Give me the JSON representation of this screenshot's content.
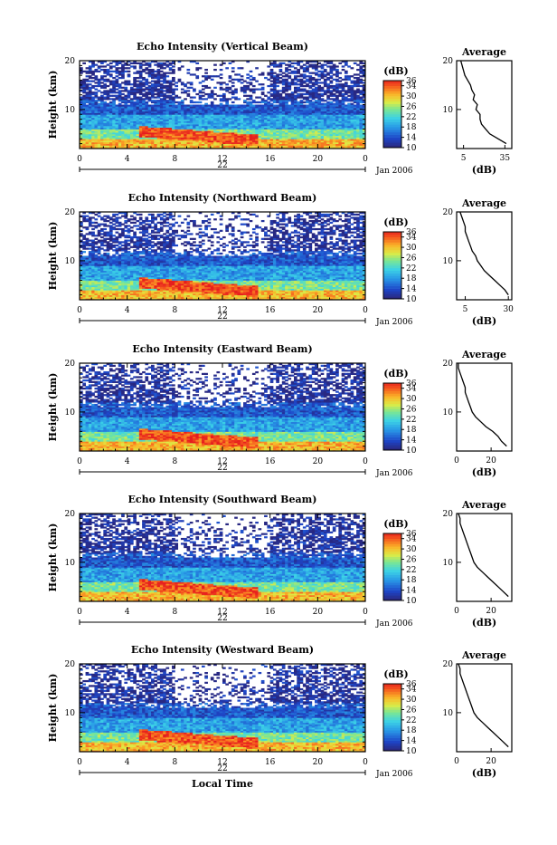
{
  "chart_data": [
    {
      "type": "heatmap",
      "title": "Echo Intensity (Vertical Beam)",
      "ylabel": "Height (km)",
      "yticks": [
        "20",
        "10"
      ],
      "ylim": [
        2,
        20
      ],
      "xticks": [
        "0",
        "4",
        "8",
        "12",
        "16",
        "20",
        "0"
      ],
      "xlim": [
        0,
        24
      ],
      "day_label": "22",
      "date_label": "Jan 2006",
      "colorbar": {
        "unit": "(dB)",
        "ticks": [
          "36",
          "34",
          "30",
          "26",
          "22",
          "18",
          "14",
          "10"
        ],
        "range": [
          10,
          36
        ]
      },
      "average": {
        "title": "Average",
        "xlabel": "(dB)",
        "xticks": [
          "5",
          "35"
        ],
        "yticks": [
          "20",
          "10"
        ],
        "xlim": [
          0,
          40
        ],
        "profile": [
          [
            3,
            36
          ],
          [
            4,
            30
          ],
          [
            5,
            24
          ],
          [
            6,
            21
          ],
          [
            7,
            18
          ],
          [
            8,
            17
          ],
          [
            9,
            17
          ],
          [
            10,
            14
          ],
          [
            11,
            15
          ],
          [
            12,
            12
          ],
          [
            13,
            13
          ],
          [
            14,
            11
          ],
          [
            15,
            10
          ],
          [
            16,
            8
          ],
          [
            17,
            6
          ],
          [
            18,
            5
          ],
          [
            19,
            4
          ],
          [
            20,
            3
          ]
        ]
      }
    },
    {
      "type": "heatmap",
      "title": "Echo Intensity (Northward Beam)",
      "ylabel": "Height (km)",
      "yticks": [
        "20",
        "10"
      ],
      "ylim": [
        2,
        20
      ],
      "xticks": [
        "0",
        "4",
        "8",
        "12",
        "16",
        "20",
        "0"
      ],
      "xlim": [
        0,
        24
      ],
      "day_label": "22",
      "date_label": "Jan 2006",
      "colorbar": {
        "unit": "(dB)",
        "ticks": [
          "36",
          "34",
          "30",
          "26",
          "22",
          "18",
          "14",
          "10"
        ],
        "range": [
          10,
          36
        ]
      },
      "average": {
        "title": "Average",
        "xlabel": "(dB)",
        "xticks": [
          "5",
          "30"
        ],
        "yticks": [
          "20",
          "10"
        ],
        "xlim": [
          0,
          32
        ],
        "profile": [
          [
            3,
            30
          ],
          [
            4,
            28
          ],
          [
            5,
            25
          ],
          [
            6,
            22
          ],
          [
            7,
            19
          ],
          [
            8,
            16
          ],
          [
            9,
            14
          ],
          [
            10,
            12
          ],
          [
            11,
            11
          ],
          [
            12,
            9
          ],
          [
            13,
            8
          ],
          [
            14,
            7
          ],
          [
            15,
            6
          ],
          [
            16,
            5
          ],
          [
            17,
            5
          ],
          [
            18,
            4
          ],
          [
            19,
            3
          ],
          [
            20,
            2
          ]
        ]
      }
    },
    {
      "type": "heatmap",
      "title": "Echo Intensity (Eastward Beam)",
      "ylabel": "Height (km)",
      "yticks": [
        "20",
        "10"
      ],
      "ylim": [
        2,
        20
      ],
      "xticks": [
        "0",
        "4",
        "8",
        "12",
        "16",
        "20",
        "0"
      ],
      "xlim": [
        0,
        24
      ],
      "day_label": "22",
      "date_label": "Jan 2006",
      "colorbar": {
        "unit": "(dB)",
        "ticks": [
          "36",
          "34",
          "30",
          "26",
          "22",
          "18",
          "14",
          "10"
        ],
        "range": [
          10,
          36
        ]
      },
      "average": {
        "title": "Average",
        "xlabel": "(dB)",
        "xticks": [
          "0",
          "20"
        ],
        "yticks": [
          "20",
          "10"
        ],
        "xlim": [
          0,
          32
        ],
        "profile": [
          [
            3,
            29
          ],
          [
            4,
            26
          ],
          [
            5,
            24
          ],
          [
            6,
            21
          ],
          [
            7,
            17
          ],
          [
            8,
            14
          ],
          [
            9,
            11
          ],
          [
            10,
            9
          ],
          [
            11,
            8
          ],
          [
            12,
            7
          ],
          [
            13,
            6
          ],
          [
            14,
            5
          ],
          [
            15,
            5
          ],
          [
            16,
            4
          ],
          [
            17,
            3
          ],
          [
            18,
            2
          ],
          [
            19,
            1
          ],
          [
            20,
            1
          ]
        ]
      }
    },
    {
      "type": "heatmap",
      "title": "Echo Intensity (Southward Beam)",
      "ylabel": "Height (km)",
      "yticks": [
        "20",
        "10"
      ],
      "ylim": [
        2,
        20
      ],
      "xticks": [
        "0",
        "4",
        "8",
        "12",
        "16",
        "20",
        "0"
      ],
      "xlim": [
        0,
        24
      ],
      "day_label": "22",
      "date_label": "Jan 2006",
      "colorbar": {
        "unit": "(dB)",
        "ticks": [
          "36",
          "34",
          "30",
          "26",
          "22",
          "18",
          "14",
          "10"
        ],
        "range": [
          10,
          36
        ]
      },
      "average": {
        "title": "Average",
        "xlabel": "(dB)",
        "xticks": [
          "0",
          "20"
        ],
        "yticks": [
          "20",
          "10"
        ],
        "xlim": [
          0,
          32
        ],
        "profile": [
          [
            3,
            30
          ],
          [
            4,
            27
          ],
          [
            5,
            24
          ],
          [
            6,
            21
          ],
          [
            7,
            18
          ],
          [
            8,
            15
          ],
          [
            9,
            12
          ],
          [
            10,
            10
          ],
          [
            11,
            9
          ],
          [
            12,
            8
          ],
          [
            13,
            7
          ],
          [
            14,
            6
          ],
          [
            15,
            5
          ],
          [
            16,
            4
          ],
          [
            17,
            3
          ],
          [
            18,
            2
          ],
          [
            19,
            2
          ],
          [
            20,
            1
          ]
        ]
      }
    },
    {
      "type": "heatmap",
      "title": "Echo Intensity (Westward Beam)",
      "ylabel": "Height (km)",
      "yticks": [
        "20",
        "10"
      ],
      "ylim": [
        2,
        20
      ],
      "xticks": [
        "0",
        "4",
        "8",
        "12",
        "16",
        "20",
        "0"
      ],
      "xlim": [
        0,
        24
      ],
      "day_label": "22",
      "date_label": "Jan 2006",
      "xlabel": "Local Time",
      "colorbar": {
        "unit": "(dB)",
        "ticks": [
          "36",
          "34",
          "30",
          "26",
          "22",
          "18",
          "14",
          "10"
        ],
        "range": [
          10,
          36
        ]
      },
      "average": {
        "title": "Average",
        "xlabel": "(dB)",
        "xticks": [
          "0",
          "20"
        ],
        "yticks": [
          "20",
          "10"
        ],
        "xlim": [
          0,
          32
        ],
        "profile": [
          [
            3,
            30
          ],
          [
            4,
            27
          ],
          [
            5,
            24
          ],
          [
            6,
            21
          ],
          [
            7,
            18
          ],
          [
            8,
            15
          ],
          [
            9,
            12
          ],
          [
            10,
            10
          ],
          [
            11,
            9
          ],
          [
            12,
            8
          ],
          [
            13,
            7
          ],
          [
            14,
            6
          ],
          [
            15,
            5
          ],
          [
            16,
            4
          ],
          [
            17,
            3
          ],
          [
            18,
            2
          ],
          [
            19,
            2
          ],
          [
            20,
            1
          ]
        ]
      }
    }
  ]
}
